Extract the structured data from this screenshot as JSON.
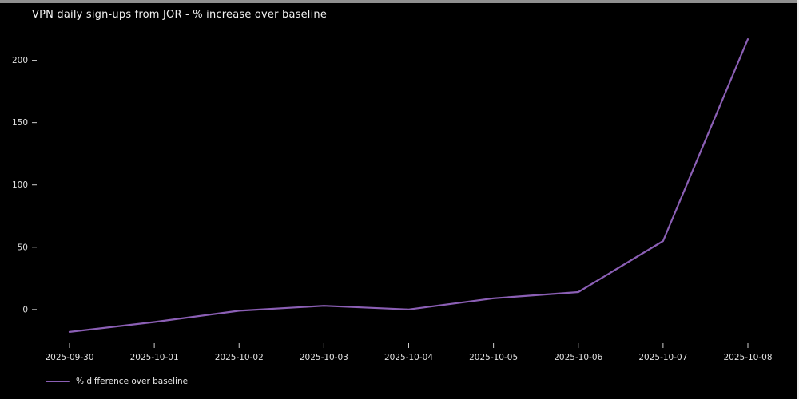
{
  "window": {
    "top_edge_color": "#8f8f8f",
    "right_edge_color": "#ececec",
    "background_color": "#000000"
  },
  "chart_data": {
    "type": "line",
    "title": "VPN daily sign-ups from JOR - % increase over baseline",
    "x": [
      "2025-09-30",
      "2025-10-01",
      "2025-10-02",
      "2025-10-03",
      "2025-10-04",
      "2025-10-05",
      "2025-10-06",
      "2025-10-07",
      "2025-10-08"
    ],
    "series": [
      {
        "name": "% difference over baseline",
        "values": [
          -18,
          -10,
          -1,
          3,
          0,
          9,
          14,
          55,
          217
        ],
        "color": "#8b5fb5"
      }
    ],
    "xlabel": "",
    "ylabel": "",
    "yticks": [
      0,
      50,
      100,
      150,
      200
    ],
    "ylim": [
      -27,
      226
    ],
    "grid": false,
    "legend_position": "lower-left",
    "background": "#000000",
    "text_color": "#e0e0e0"
  }
}
